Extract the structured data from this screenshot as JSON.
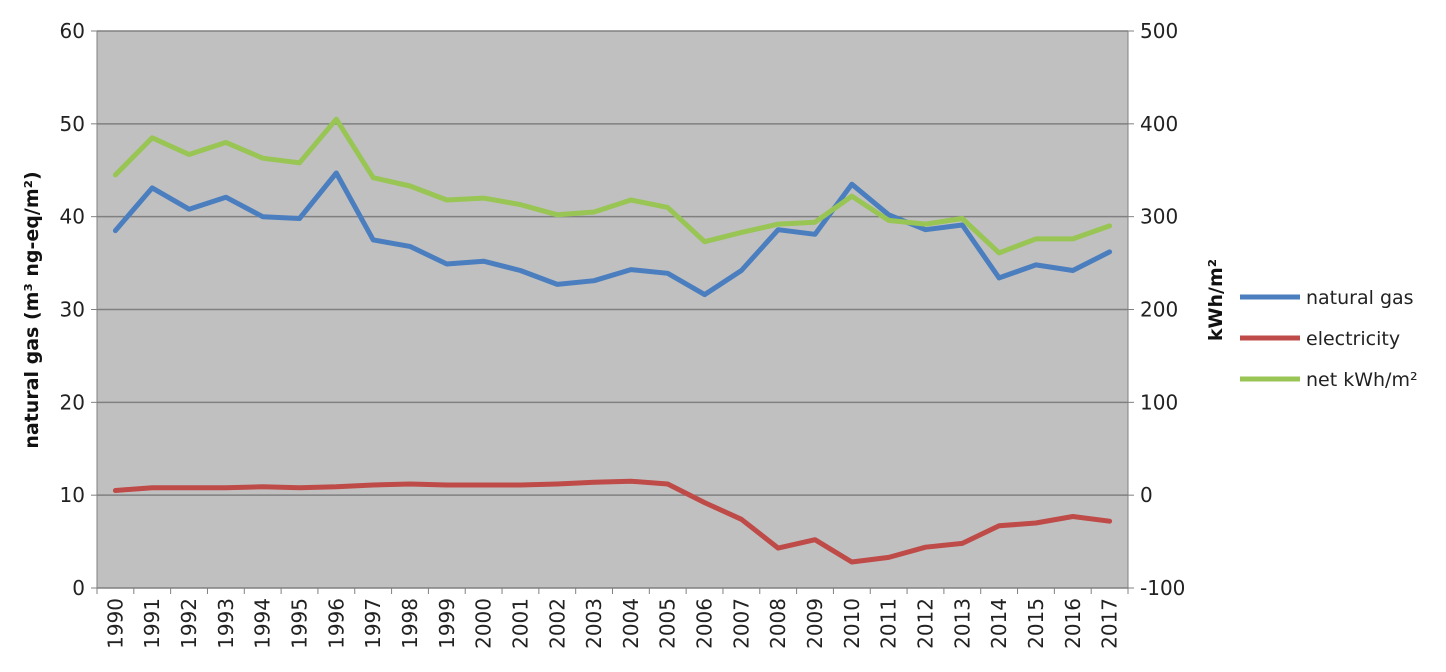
{
  "chart_data": {
    "type": "line",
    "ylabel": "natural gas (m³ ng-eq/m²)",
    "y2label": "kWh/m²",
    "ylim": [
      0,
      60
    ],
    "y2lim": [
      -100,
      500
    ],
    "yticks": [
      0,
      10,
      20,
      30,
      40,
      50,
      60
    ],
    "y2ticks": [
      -100,
      0,
      100,
      200,
      300,
      400,
      500
    ],
    "grid": true,
    "legend_position": "right",
    "categories": [
      "1990",
      "1991",
      "1992",
      "1993",
      "1994",
      "1995",
      "1996",
      "1997",
      "1998",
      "1999",
      "2000",
      "2001",
      "2002",
      "2003",
      "2004",
      "2005",
      "2006",
      "2007",
      "2008",
      "2009",
      "2010",
      "2011",
      "2012",
      "2013",
      "2014",
      "2015",
      "2016",
      "2017"
    ],
    "series": [
      {
        "name": "natural gas",
        "axis": "left",
        "color": "#4a7ebf",
        "values": [
          38.5,
          43.1,
          40.8,
          42.1,
          40.0,
          39.8,
          44.7,
          37.5,
          36.8,
          34.9,
          35.2,
          34.2,
          32.7,
          33.1,
          34.3,
          33.9,
          31.6,
          34.2,
          38.6,
          38.1,
          43.5,
          40.2,
          38.6,
          39.1,
          33.4,
          34.8,
          34.2,
          36.2
        ]
      },
      {
        "name": "electricity",
        "axis": "right",
        "color": "#be4b48",
        "values": [
          5,
          8,
          8,
          8,
          9,
          8,
          9,
          11,
          12,
          11,
          11,
          11,
          12,
          14,
          15,
          12,
          -8,
          -26,
          -57,
          -48,
          -72,
          -67,
          -56,
          -52,
          -33,
          -30,
          -23,
          -28
        ]
      },
      {
        "name": "net kWh/m²",
        "axis": "right",
        "color": "#98c554",
        "values": [
          345,
          385,
          367,
          380,
          363,
          358,
          405,
          342,
          333,
          318,
          320,
          313,
          302,
          305,
          318,
          310,
          273,
          283,
          292,
          294,
          322,
          296,
          292,
          298,
          261,
          276,
          276,
          290
        ]
      }
    ]
  }
}
